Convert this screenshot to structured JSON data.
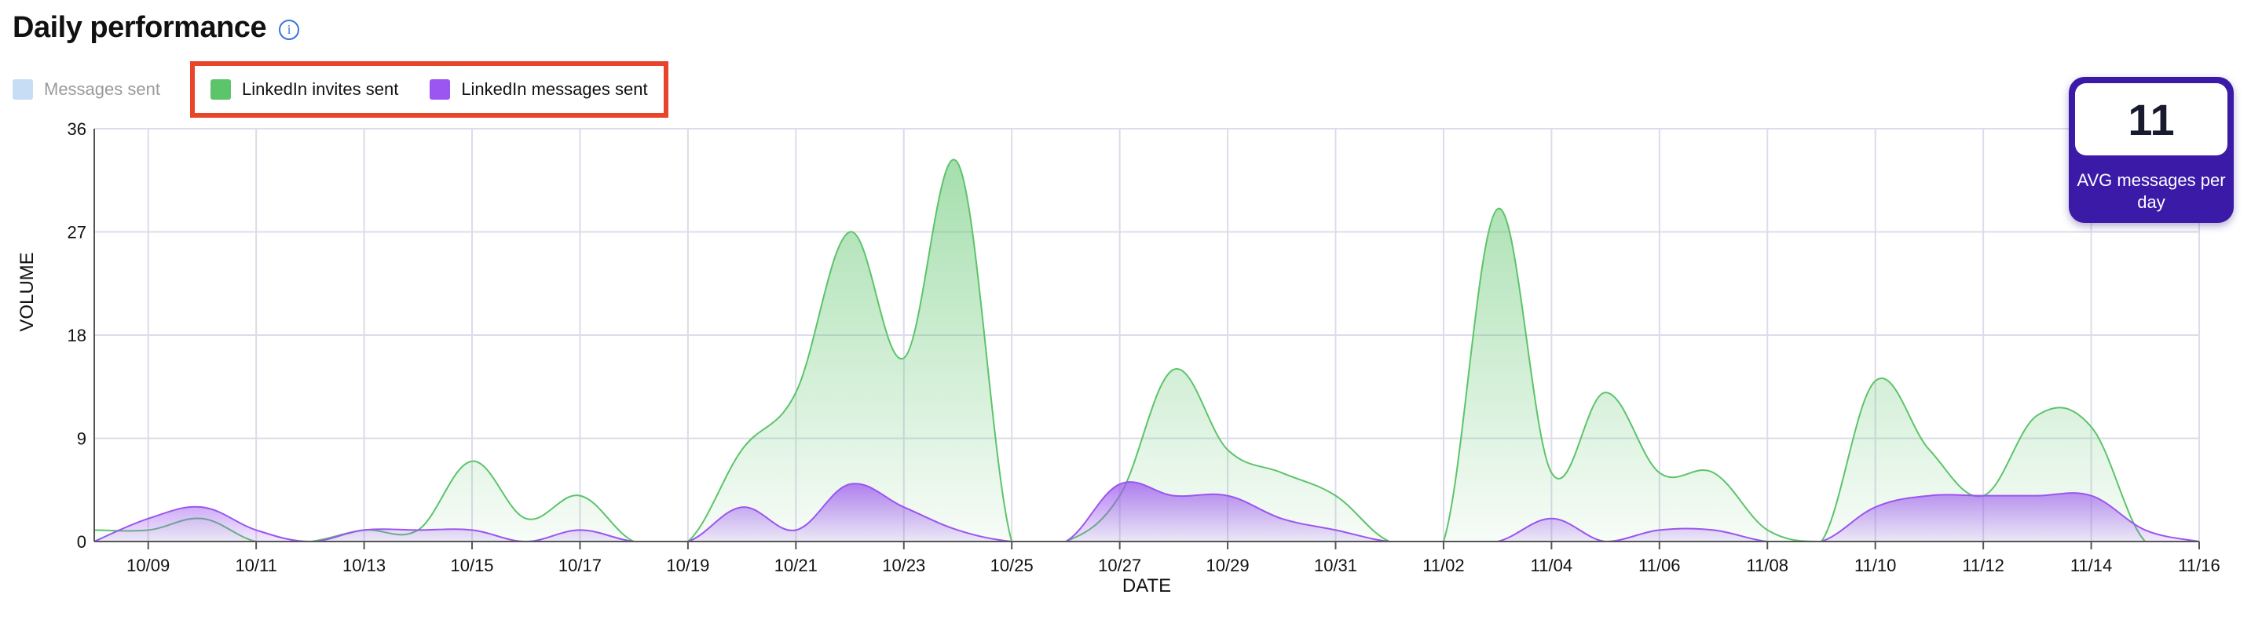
{
  "header": {
    "title": "Daily performance",
    "info_icon": "info-icon"
  },
  "legend": {
    "items": [
      {
        "label": "Messages sent",
        "color": "#c7dcf5",
        "active": false
      },
      {
        "label": "LinkedIn invites sent",
        "color": "#5cc46a",
        "active": true
      },
      {
        "label": "LinkedIn messages sent",
        "color": "#9b55f0",
        "active": true
      }
    ],
    "highlight_color": "#e8442a"
  },
  "avg_card": {
    "value": "11",
    "label": "AVG messages per day",
    "color": "#3b1aa8"
  },
  "chart_data": {
    "type": "area",
    "xlabel": "DATE",
    "ylabel": "VOLUME",
    "ylim": [
      0,
      36
    ],
    "yticks": [
      "0",
      "9",
      "18",
      "27",
      "36"
    ],
    "grid": true,
    "x_start": "10/08",
    "x_end": "11/16",
    "x": [
      "10/08",
      "10/09",
      "10/10",
      "10/11",
      "10/12",
      "10/13",
      "10/14",
      "10/15",
      "10/16",
      "10/17",
      "10/18",
      "10/19",
      "10/20",
      "10/21",
      "10/22",
      "10/23",
      "10/24",
      "10/25",
      "10/26",
      "10/27",
      "10/28",
      "10/29",
      "10/30",
      "10/31",
      "11/01",
      "11/02",
      "11/03",
      "11/04",
      "11/05",
      "11/06",
      "11/07",
      "11/08",
      "11/09",
      "11/10",
      "11/11",
      "11/12",
      "11/13",
      "11/14",
      "11/15",
      "11/16"
    ],
    "xticks": [
      "10/09",
      "10/11",
      "10/13",
      "10/15",
      "10/17",
      "10/19",
      "10/21",
      "10/23",
      "10/25",
      "10/27",
      "10/29",
      "10/31",
      "11/02",
      "11/04",
      "11/06",
      "11/08",
      "11/10",
      "11/12",
      "11/14",
      "11/16"
    ],
    "series": [
      {
        "name": "Messages sent",
        "color": "#c7dcf5",
        "visible": false,
        "values": [
          0,
          0,
          0,
          0,
          0,
          0,
          0,
          0,
          0,
          0,
          0,
          0,
          0,
          0,
          0,
          0,
          0,
          0,
          0,
          0,
          0,
          0,
          0,
          0,
          0,
          0,
          0,
          0,
          0,
          0,
          0,
          0,
          0,
          0,
          0,
          0,
          0,
          0,
          0,
          0
        ]
      },
      {
        "name": "LinkedIn invites sent",
        "color": "#5cc46a",
        "visible": true,
        "values": [
          1,
          1,
          2,
          0,
          0,
          1,
          1,
          7,
          2,
          4,
          0,
          0,
          8,
          13,
          27,
          16,
          33,
          0,
          0,
          4,
          15,
          8,
          6,
          4,
          0,
          0,
          29,
          6,
          13,
          6,
          6,
          1,
          0,
          14,
          8,
          4,
          11,
          10,
          0,
          0
        ]
      },
      {
        "name": "LinkedIn messages sent",
        "color": "#9b55f0",
        "visible": true,
        "values": [
          0,
          2,
          3,
          1,
          0,
          1,
          1,
          1,
          0,
          1,
          0,
          0,
          3,
          1,
          5,
          3,
          1,
          0,
          0,
          5,
          4,
          4,
          2,
          1,
          0,
          0,
          0,
          2,
          0,
          1,
          1,
          0,
          0,
          3,
          4,
          4,
          4,
          4,
          1,
          0
        ]
      }
    ]
  }
}
